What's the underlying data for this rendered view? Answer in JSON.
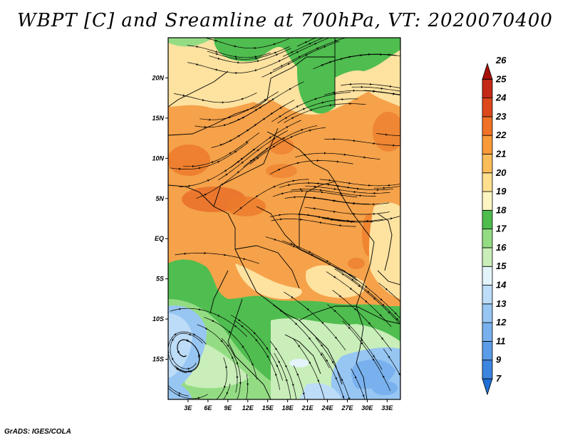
{
  "title": "WBPT [C] and Sreamline at 700hPa, VT: 2020070400",
  "footer": "GrADS: IGES/COLA",
  "map": {
    "lon_ticks": [
      "3E",
      "6E",
      "9E",
      "12E",
      "15E",
      "18E",
      "21E",
      "24E",
      "27E",
      "30E",
      "33E"
    ],
    "lat_ticks": [
      "20N",
      "15N",
      "10N",
      "5N",
      "EQ",
      "5S",
      "10S",
      "15S"
    ],
    "lon_range": [
      0,
      35
    ],
    "lat_range": [
      -20,
      25
    ]
  },
  "colorbar": {
    "levels": [
      "7",
      "9",
      "11",
      "12",
      "13",
      "14",
      "15",
      "16",
      "17",
      "18",
      "19",
      "20",
      "21",
      "22",
      "23",
      "24",
      "25",
      "26"
    ],
    "colors": [
      "#1f6fd6",
      "#3d86e0",
      "#5b9ce8",
      "#79b1ee",
      "#97c6f3",
      "#bcdcf7",
      "#e3f4fb",
      "#c9eeb9",
      "#94dc84",
      "#4ebd4e",
      "#fef6c2",
      "#fddf8e",
      "#fbbc5a",
      "#f89a39",
      "#ef7226",
      "#dc4a1c",
      "#c42a15",
      "#a61008"
    ]
  }
}
